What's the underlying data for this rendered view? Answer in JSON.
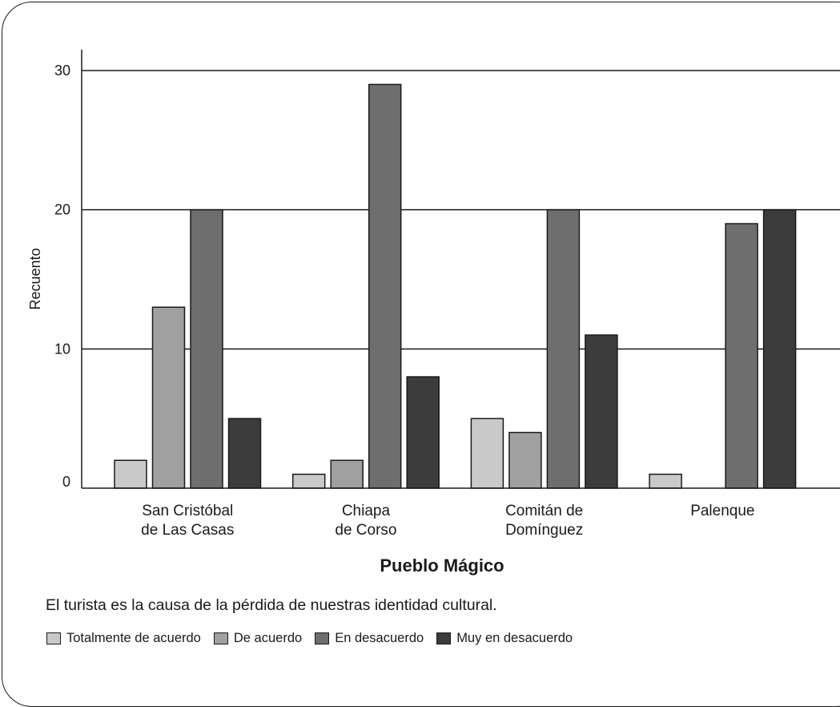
{
  "chart_data": {
    "type": "bar",
    "categories": [
      "San Cristóbal\nde Las Casas",
      "Chiapa\nde Corso",
      "Comitán de\nDomínguez",
      "Palenque"
    ],
    "series": [
      {
        "name": "Totalmente de acuerdo",
        "color": "#c9c9c9",
        "values": [
          2,
          1,
          5,
          1
        ]
      },
      {
        "name": "De acuerdo",
        "color": "#a0a0a0",
        "values": [
          13,
          2,
          4,
          0
        ]
      },
      {
        "name": "En desacuerdo",
        "color": "#6e6e6e",
        "values": [
          20,
          29,
          20,
          19
        ]
      },
      {
        "name": "Muy en desacuerdo",
        "color": "#3c3c3c",
        "values": [
          5,
          8,
          11,
          20
        ]
      }
    ],
    "xlabel": "Pueblo Mágico",
    "ylabel": "Recuento",
    "ylim": [
      0,
      30
    ],
    "yticks": [
      0,
      10,
      20,
      30
    ],
    "grid": true,
    "legend_title": "El turista es la causa de la pérdida de nuestras identidad cultural.",
    "legend_position": "bottom"
  }
}
